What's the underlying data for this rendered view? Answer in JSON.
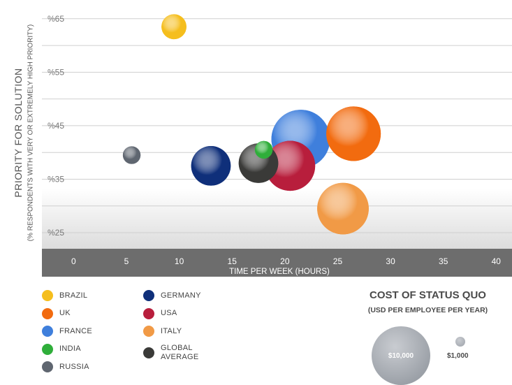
{
  "chart_data": {
    "type": "scatter",
    "title": "",
    "xlabel": "TIME PER WEEK (HOURS)",
    "ylabel": "PRIORITY FOR SOLUTION",
    "ylabel_sub": "(% RESPONDENTS WITH VERY OR EXTREMELY HIGH PRIORITY)",
    "x_ticks": [
      "0",
      "5",
      "10",
      "15",
      "20",
      "25",
      "30",
      "35",
      "40"
    ],
    "y_ticks": [
      "%25",
      "%35",
      "%45",
      "%55",
      "%65"
    ],
    "xlim": [
      -3,
      41.5
    ],
    "ylim": [
      22,
      68.5
    ],
    "grid": true,
    "series": [
      {
        "name": "BRAZIL",
        "x": 9.5,
        "y": 63.5,
        "size": 2000,
        "color": "#f5be1d"
      },
      {
        "name": "UK",
        "x": 26.5,
        "y": 43.5,
        "size": 9500,
        "color": "#f26b0f"
      },
      {
        "name": "FRANCE",
        "x": 21.5,
        "y": 42.5,
        "size": 11000,
        "color": "#3f7fdc"
      },
      {
        "name": "INDIA",
        "x": 18,
        "y": 40.5,
        "size": 1000,
        "color": "#2fae3a"
      },
      {
        "name": "RUSSIA",
        "x": 5.5,
        "y": 39.5,
        "size": 1000,
        "color": "#5f6670"
      },
      {
        "name": "GERMANY",
        "x": 13,
        "y": 37.5,
        "size": 5000,
        "color": "#0f2f7a"
      },
      {
        "name": "USA",
        "x": 20.5,
        "y": 37.5,
        "size": 8000,
        "color": "#b81e3c"
      },
      {
        "name": "ITALY",
        "x": 25.5,
        "y": 29.5,
        "size": 8500,
        "color": "#f19a46"
      },
      {
        "name": "GLOBAL AVERAGE",
        "x": 17.5,
        "y": 38,
        "size": 5000,
        "color": "#3a3a38"
      }
    ]
  },
  "legend": {
    "col1": [
      {
        "label": "BRAZIL",
        "color": "#f5be1d"
      },
      {
        "label": "UK",
        "color": "#f26b0f"
      },
      {
        "label": "FRANCE",
        "color": "#3f7fdc"
      },
      {
        "label": "INDIA",
        "color": "#2fae3a"
      },
      {
        "label": "RUSSIA",
        "color": "#5f6670"
      }
    ],
    "col2": [
      {
        "label": "GERMANY",
        "color": "#0f2f7a"
      },
      {
        "label": "USA",
        "color": "#b81e3c"
      },
      {
        "label": "ITALY",
        "color": "#f19a46"
      },
      {
        "label": "GLOBAL AVERAGE",
        "color": "#3a3a38"
      }
    ]
  },
  "cost": {
    "title": "COST OF STATUS QUO",
    "subtitle": "(USD PER EMPLOYEE PER YEAR)",
    "big_label": "$10,000",
    "small_label": "$1,000"
  }
}
